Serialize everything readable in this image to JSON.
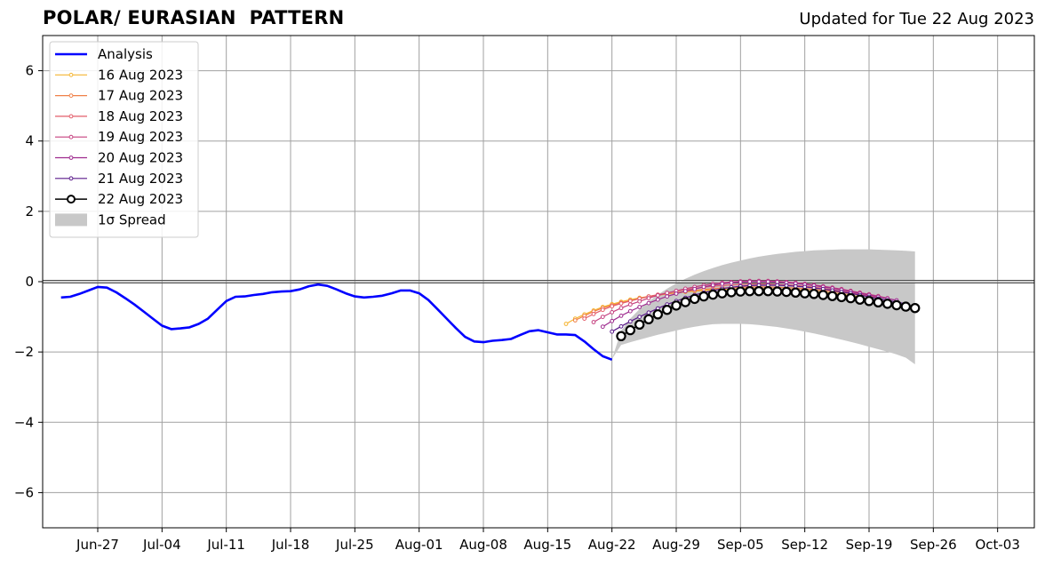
{
  "chart_data": {
    "type": "line",
    "title_left": "POLAR/ EURASIAN  PATTERN",
    "title_right": "Updated for Tue 22 Aug 2023",
    "ylim": [
      -7,
      7
    ],
    "y_ticks": [
      -6,
      -4,
      -2,
      0,
      2,
      4,
      6
    ],
    "x_start": "2023-06-21",
    "x_end": "2023-10-07",
    "x_ticks": [
      {
        "date": "2023-06-27",
        "label": "Jun-27"
      },
      {
        "date": "2023-07-04",
        "label": "Jul-04"
      },
      {
        "date": "2023-07-11",
        "label": "Jul-11"
      },
      {
        "date": "2023-07-18",
        "label": "Jul-18"
      },
      {
        "date": "2023-07-25",
        "label": "Jul-25"
      },
      {
        "date": "2023-08-01",
        "label": "Aug-01"
      },
      {
        "date": "2023-08-08",
        "label": "Aug-08"
      },
      {
        "date": "2023-08-15",
        "label": "Aug-15"
      },
      {
        "date": "2023-08-22",
        "label": "Aug-22"
      },
      {
        "date": "2023-08-29",
        "label": "Aug-29"
      },
      {
        "date": "2023-09-05",
        "label": "Sep-05"
      },
      {
        "date": "2023-09-12",
        "label": "Sep-12"
      },
      {
        "date": "2023-09-19",
        "label": "Sep-19"
      },
      {
        "date": "2023-09-26",
        "label": "Sep-26"
      },
      {
        "date": "2023-10-03",
        "label": "Oct-03"
      }
    ],
    "grid": true,
    "legend_position": "top-left",
    "analysis": {
      "name": "Analysis",
      "color": "#0000ff",
      "points": [
        [
          "2023-06-23",
          -0.45
        ],
        [
          "2023-06-24",
          -0.43
        ],
        [
          "2023-06-25",
          -0.35
        ],
        [
          "2023-06-26",
          -0.25
        ],
        [
          "2023-06-27",
          -0.15
        ],
        [
          "2023-06-28",
          -0.17
        ],
        [
          "2023-06-29",
          -0.3
        ],
        [
          "2023-06-30",
          -0.47
        ],
        [
          "2023-07-01",
          -0.65
        ],
        [
          "2023-07-02",
          -0.85
        ],
        [
          "2023-07-03",
          -1.05
        ],
        [
          "2023-07-04",
          -1.25
        ],
        [
          "2023-07-05",
          -1.35
        ],
        [
          "2023-07-06",
          -1.33
        ],
        [
          "2023-07-07",
          -1.3
        ],
        [
          "2023-07-08",
          -1.2
        ],
        [
          "2023-07-09",
          -1.05
        ],
        [
          "2023-07-10",
          -0.8
        ],
        [
          "2023-07-11",
          -0.55
        ],
        [
          "2023-07-12",
          -0.43
        ],
        [
          "2023-07-13",
          -0.42
        ],
        [
          "2023-07-14",
          -0.38
        ],
        [
          "2023-07-15",
          -0.35
        ],
        [
          "2023-07-16",
          -0.3
        ],
        [
          "2023-07-17",
          -0.28
        ],
        [
          "2023-07-18",
          -0.27
        ],
        [
          "2023-07-19",
          -0.22
        ],
        [
          "2023-07-20",
          -0.13
        ],
        [
          "2023-07-21",
          -0.08
        ],
        [
          "2023-07-22",
          -0.12
        ],
        [
          "2023-07-23",
          -0.22
        ],
        [
          "2023-07-24",
          -0.33
        ],
        [
          "2023-07-25",
          -0.42
        ],
        [
          "2023-07-26",
          -0.45
        ],
        [
          "2023-07-27",
          -0.43
        ],
        [
          "2023-07-28",
          -0.4
        ],
        [
          "2023-07-29",
          -0.33
        ],
        [
          "2023-07-30",
          -0.25
        ],
        [
          "2023-07-31",
          -0.25
        ],
        [
          "2023-08-01",
          -0.33
        ],
        [
          "2023-08-02",
          -0.52
        ],
        [
          "2023-08-03",
          -0.78
        ],
        [
          "2023-08-04",
          -1.05
        ],
        [
          "2023-08-05",
          -1.32
        ],
        [
          "2023-08-06",
          -1.57
        ],
        [
          "2023-08-07",
          -1.7
        ],
        [
          "2023-08-08",
          -1.72
        ],
        [
          "2023-08-09",
          -1.68
        ],
        [
          "2023-08-10",
          -1.66
        ],
        [
          "2023-08-11",
          -1.63
        ],
        [
          "2023-08-12",
          -1.52
        ],
        [
          "2023-08-13",
          -1.41
        ],
        [
          "2023-08-14",
          -1.38
        ],
        [
          "2023-08-15",
          -1.44
        ],
        [
          "2023-08-16",
          -1.5
        ],
        [
          "2023-08-17",
          -1.5
        ],
        [
          "2023-08-18",
          -1.52
        ],
        [
          "2023-08-19",
          -1.7
        ],
        [
          "2023-08-20",
          -1.92
        ],
        [
          "2023-08-21",
          -2.12
        ],
        [
          "2023-08-22",
          -2.22
        ]
      ]
    },
    "forecasts": [
      {
        "name": "16 Aug 2023",
        "color": "#f5b531",
        "start": "2023-08-17",
        "end": "2023-09-18",
        "values": [
          -1.2,
          -1.05,
          -0.93,
          -0.82,
          -0.72,
          -0.64,
          -0.57,
          -0.51,
          -0.46,
          -0.42,
          -0.38,
          -0.35,
          -0.32,
          -0.29,
          -0.27,
          -0.25,
          -0.23,
          -0.22,
          -0.21,
          -0.2,
          -0.2,
          -0.2,
          -0.2,
          -0.21,
          -0.22,
          -0.23,
          -0.25,
          -0.27,
          -0.3,
          -0.33,
          -0.36,
          -0.39,
          -0.43
        ]
      },
      {
        "name": "17 Aug 2023",
        "color": "#f08048",
        "start": "2023-08-18",
        "end": "2023-09-19",
        "values": [
          -1.1,
          -0.97,
          -0.85,
          -0.75,
          -0.67,
          -0.6,
          -0.54,
          -0.48,
          -0.43,
          -0.39,
          -0.35,
          -0.31,
          -0.28,
          -0.25,
          -0.22,
          -0.2,
          -0.18,
          -0.17,
          -0.16,
          -0.15,
          -0.15,
          -0.15,
          -0.16,
          -0.17,
          -0.18,
          -0.2,
          -0.22,
          -0.25,
          -0.28,
          -0.31,
          -0.34,
          -0.38,
          -0.43
        ]
      },
      {
        "name": "18 Aug 2023",
        "color": "#e35d6a",
        "start": "2023-08-19",
        "end": "2023-09-20",
        "values": [
          -1.05,
          -0.92,
          -0.8,
          -0.7,
          -0.62,
          -0.55,
          -0.48,
          -0.42,
          -0.37,
          -0.32,
          -0.27,
          -0.23,
          -0.19,
          -0.16,
          -0.13,
          -0.11,
          -0.09,
          -0.08,
          -0.07,
          -0.07,
          -0.07,
          -0.08,
          -0.09,
          -0.11,
          -0.13,
          -0.16,
          -0.19,
          -0.23,
          -0.27,
          -0.31,
          -0.36,
          -0.41,
          -0.46
        ]
      },
      {
        "name": "19 Aug 2023",
        "color": "#c5407f",
        "start": "2023-08-20",
        "end": "2023-09-21",
        "values": [
          -1.15,
          -1.0,
          -0.87,
          -0.75,
          -0.65,
          -0.56,
          -0.47,
          -0.39,
          -0.32,
          -0.26,
          -0.2,
          -0.15,
          -0.1,
          -0.06,
          -0.03,
          -0.01,
          0.01,
          0.02,
          0.02,
          0.02,
          0.01,
          -0.01,
          -0.03,
          -0.06,
          -0.09,
          -0.13,
          -0.17,
          -0.21,
          -0.26,
          -0.31,
          -0.36,
          -0.41,
          -0.47
        ]
      },
      {
        "name": "20 Aug 2023",
        "color": "#9e2a8e",
        "start": "2023-08-21",
        "end": "2023-09-22",
        "values": [
          -1.28,
          -1.12,
          -0.97,
          -0.84,
          -0.72,
          -0.61,
          -0.51,
          -0.42,
          -0.34,
          -0.27,
          -0.21,
          -0.15,
          -0.1,
          -0.06,
          -0.03,
          -0.01,
          0.0,
          0.0,
          0.0,
          -0.01,
          -0.03,
          -0.05,
          -0.08,
          -0.11,
          -0.15,
          -0.19,
          -0.23,
          -0.28,
          -0.33,
          -0.38,
          -0.43,
          -0.48,
          -0.53
        ]
      },
      {
        "name": "21 Aug 2023",
        "color": "#5a1a8a",
        "start": "2023-08-22",
        "end": "2023-09-23",
        "values": [
          -1.42,
          -1.27,
          -1.13,
          -1.0,
          -0.88,
          -0.76,
          -0.65,
          -0.55,
          -0.46,
          -0.38,
          -0.31,
          -0.25,
          -0.2,
          -0.16,
          -0.13,
          -0.11,
          -0.1,
          -0.1,
          -0.1,
          -0.11,
          -0.13,
          -0.15,
          -0.18,
          -0.21,
          -0.25,
          -0.29,
          -0.33,
          -0.38,
          -0.43,
          -0.48,
          -0.53,
          -0.58,
          -0.63
        ]
      },
      {
        "name": "22 Aug 2023",
        "color": "#000000",
        "start": "2023-08-23",
        "end": "2023-09-24",
        "marker": "open-circle",
        "values": [
          -1.55,
          -1.38,
          -1.22,
          -1.07,
          -0.93,
          -0.8,
          -0.68,
          -0.58,
          -0.49,
          -0.42,
          -0.37,
          -0.33,
          -0.3,
          -0.28,
          -0.27,
          -0.27,
          -0.27,
          -0.28,
          -0.29,
          -0.31,
          -0.33,
          -0.35,
          -0.38,
          -0.41,
          -0.44,
          -0.47,
          -0.51,
          -0.55,
          -0.59,
          -0.63,
          -0.67,
          -0.71,
          -0.75
        ]
      }
    ],
    "spread": {
      "name": "1σ Spread",
      "color": "#c8c8c8",
      "start": "2023-08-22",
      "end": "2023-09-24",
      "upper": [
        -2.2,
        -1.4,
        -1.05,
        -0.78,
        -0.56,
        -0.37,
        -0.2,
        -0.05,
        0.08,
        0.2,
        0.3,
        0.39,
        0.47,
        0.54,
        0.6,
        0.66,
        0.71,
        0.75,
        0.79,
        0.82,
        0.85,
        0.87,
        0.89,
        0.9,
        0.91,
        0.92,
        0.92,
        0.92,
        0.92,
        0.91,
        0.9,
        0.89,
        0.88,
        0.86
      ],
      "lower": [
        -2.2,
        -1.8,
        -1.72,
        -1.65,
        -1.58,
        -1.51,
        -1.45,
        -1.39,
        -1.33,
        -1.28,
        -1.24,
        -1.21,
        -1.2,
        -1.2,
        -1.2,
        -1.21,
        -1.23,
        -1.26,
        -1.29,
        -1.33,
        -1.37,
        -1.42,
        -1.47,
        -1.53,
        -1.59,
        -1.65,
        -1.71,
        -1.78,
        -1.85,
        -1.92,
        -1.99,
        -2.07,
        -2.16,
        -2.35
      ]
    }
  }
}
